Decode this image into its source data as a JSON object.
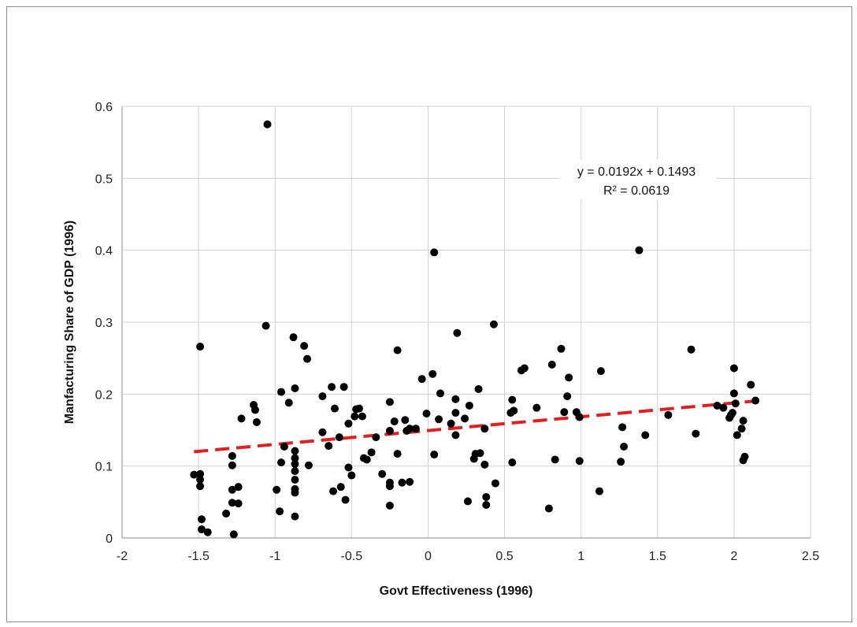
{
  "chart_data": {
    "type": "scatter",
    "xlabel": "Govt Effectiveness (1996)",
    "ylabel": "Manfacturing Share of GDP (1996)",
    "xlim": [
      -2,
      2.5
    ],
    "ylim": [
      0,
      0.6
    ],
    "x_ticks": [
      "-2",
      "-1.5",
      "-1",
      "-0.5",
      "0",
      "0.5",
      "1",
      "1.5",
      "2",
      "2.5"
    ],
    "y_ticks": [
      "0",
      "0.1",
      "0.2",
      "0.3",
      "0.4",
      "0.5",
      "0.6"
    ],
    "grid": true,
    "marker_color": "#000000",
    "trendline": {
      "slope": 0.0192,
      "intercept": 0.1493,
      "x_range": [
        -1.53,
        2.15
      ],
      "color": "#e02020",
      "style": "dashed",
      "equation": "y = 0.0192x + 0.1493",
      "r_squared": "R² = 0.0619"
    },
    "points": [
      [
        -1.53,
        0.088
      ],
      [
        -1.49,
        0.266
      ],
      [
        -1.49,
        0.089
      ],
      [
        -1.49,
        0.081
      ],
      [
        -1.49,
        0.072
      ],
      [
        -1.48,
        0.026
      ],
      [
        -1.48,
        0.012
      ],
      [
        -1.44,
        0.008
      ],
      [
        -1.32,
        0.034
      ],
      [
        -1.28,
        0.114
      ],
      [
        -1.28,
        0.101
      ],
      [
        -1.28,
        0.067
      ],
      [
        -1.28,
        0.049
      ],
      [
        -1.27,
        0.005
      ],
      [
        -1.24,
        0.071
      ],
      [
        -1.24,
        0.048
      ],
      [
        -1.22,
        0.166
      ],
      [
        -1.14,
        0.185
      ],
      [
        -1.13,
        0.178
      ],
      [
        -1.12,
        0.161
      ],
      [
        -1.06,
        0.295
      ],
      [
        -1.05,
        0.575
      ],
      [
        -0.99,
        0.067
      ],
      [
        -0.97,
        0.037
      ],
      [
        -0.96,
        0.203
      ],
      [
        -0.96,
        0.105
      ],
      [
        -0.94,
        0.127
      ],
      [
        -0.91,
        0.188
      ],
      [
        -0.88,
        0.279
      ],
      [
        -0.87,
        0.208
      ],
      [
        -0.87,
        0.121
      ],
      [
        -0.87,
        0.111
      ],
      [
        -0.87,
        0.103
      ],
      [
        -0.87,
        0.093
      ],
      [
        -0.87,
        0.081
      ],
      [
        -0.87,
        0.068
      ],
      [
        -0.87,
        0.063
      ],
      [
        -0.87,
        0.03
      ],
      [
        -0.81,
        0.267
      ],
      [
        -0.79,
        0.249
      ],
      [
        -0.78,
        0.101
      ],
      [
        -0.69,
        0.197
      ],
      [
        -0.69,
        0.147
      ],
      [
        -0.65,
        0.128
      ],
      [
        -0.63,
        0.21
      ],
      [
        -0.62,
        0.065
      ],
      [
        -0.61,
        0.18
      ],
      [
        -0.58,
        0.14
      ],
      [
        -0.57,
        0.071
      ],
      [
        -0.55,
        0.21
      ],
      [
        -0.54,
        0.053
      ],
      [
        -0.52,
        0.159
      ],
      [
        -0.52,
        0.098
      ],
      [
        -0.5,
        0.087
      ],
      [
        -0.48,
        0.169
      ],
      [
        -0.47,
        0.179
      ],
      [
        -0.45,
        0.18
      ],
      [
        -0.43,
        0.169
      ],
      [
        -0.42,
        0.111
      ],
      [
        -0.4,
        0.109
      ],
      [
        -0.37,
        0.119
      ],
      [
        -0.34,
        0.14
      ],
      [
        -0.3,
        0.089
      ],
      [
        -0.25,
        0.189
      ],
      [
        -0.25,
        0.149
      ],
      [
        -0.25,
        0.077
      ],
      [
        -0.25,
        0.072
      ],
      [
        -0.25,
        0.045
      ],
      [
        -0.22,
        0.162
      ],
      [
        -0.2,
        0.261
      ],
      [
        -0.2,
        0.117
      ],
      [
        -0.17,
        0.077
      ],
      [
        -0.15,
        0.164
      ],
      [
        -0.14,
        0.149
      ],
      [
        -0.12,
        0.152
      ],
      [
        -0.12,
        0.078
      ],
      [
        -0.08,
        0.152
      ],
      [
        -0.04,
        0.221
      ],
      [
        -0.01,
        0.173
      ],
      [
        0.03,
        0.228
      ],
      [
        0.04,
        0.397
      ],
      [
        0.04,
        0.116
      ],
      [
        0.07,
        0.165
      ],
      [
        0.08,
        0.201
      ],
      [
        0.15,
        0.159
      ],
      [
        0.18,
        0.174
      ],
      [
        0.18,
        0.193
      ],
      [
        0.18,
        0.143
      ],
      [
        0.19,
        0.285
      ],
      [
        0.24,
        0.166
      ],
      [
        0.26,
        0.051
      ],
      [
        0.27,
        0.184
      ],
      [
        0.3,
        0.11
      ],
      [
        0.31,
        0.117
      ],
      [
        0.33,
        0.207
      ],
      [
        0.34,
        0.118
      ],
      [
        0.37,
        0.152
      ],
      [
        0.37,
        0.102
      ],
      [
        0.38,
        0.057
      ],
      [
        0.38,
        0.046
      ],
      [
        0.43,
        0.297
      ],
      [
        0.44,
        0.076
      ],
      [
        0.54,
        0.174
      ],
      [
        0.55,
        0.105
      ],
      [
        0.55,
        0.192
      ],
      [
        0.56,
        0.177
      ],
      [
        0.61,
        0.233
      ],
      [
        0.63,
        0.236
      ],
      [
        0.71,
        0.181
      ],
      [
        0.79,
        0.041
      ],
      [
        0.81,
        0.241
      ],
      [
        0.83,
        0.109
      ],
      [
        0.87,
        0.263
      ],
      [
        0.89,
        0.175
      ],
      [
        0.91,
        0.197
      ],
      [
        0.92,
        0.223
      ],
      [
        0.97,
        0.175
      ],
      [
        0.99,
        0.168
      ],
      [
        0.99,
        0.107
      ],
      [
        1.12,
        0.065
      ],
      [
        1.13,
        0.232
      ],
      [
        1.26,
        0.106
      ],
      [
        1.27,
        0.154
      ],
      [
        1.28,
        0.127
      ],
      [
        1.38,
        0.4
      ],
      [
        1.42,
        0.143
      ],
      [
        1.57,
        0.171
      ],
      [
        1.72,
        0.262
      ],
      [
        1.75,
        0.145
      ],
      [
        1.89,
        0.184
      ],
      [
        1.93,
        0.181
      ],
      [
        1.97,
        0.167
      ],
      [
        1.98,
        0.171
      ],
      [
        1.99,
        0.174
      ],
      [
        2.0,
        0.201
      ],
      [
        2.0,
        0.236
      ],
      [
        2.01,
        0.187
      ],
      [
        2.02,
        0.143
      ],
      [
        2.05,
        0.152
      ],
      [
        2.06,
        0.163
      ],
      [
        2.06,
        0.108
      ],
      [
        2.07,
        0.113
      ],
      [
        2.11,
        0.213
      ],
      [
        2.14,
        0.191
      ]
    ]
  }
}
